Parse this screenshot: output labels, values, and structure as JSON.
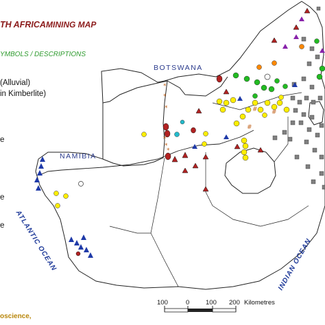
{
  "title": {
    "part1": "TH AFRICA",
    "part2": "MINING MAP"
  },
  "legend": {
    "heading": "YMBOLS / DESCRIPTIONS",
    "item1": "(Alluvial)",
    "item2": "in Kimberlite)",
    "frag1": "e",
    "frag2": "e",
    "frag3": "e"
  },
  "labels": {
    "botswana": "BOTSWANA",
    "namibia": "NAMIBIA",
    "atlantic": "ATLANTIC OCEAN",
    "indian": "INDIAN OCEAN"
  },
  "credit": "oscience,",
  "scale": {
    "ticks": [
      "100",
      "0",
      "100",
      "200"
    ],
    "unit": "Kilometres"
  },
  "colors": {
    "diamond_red": "#b22222",
    "alluvial_yellow": "#ffee00",
    "green": "#22bb22",
    "grey": "#808080",
    "blue": "#1f3aa8",
    "purple": "#8822aa",
    "orange": "#ff8800"
  }
}
